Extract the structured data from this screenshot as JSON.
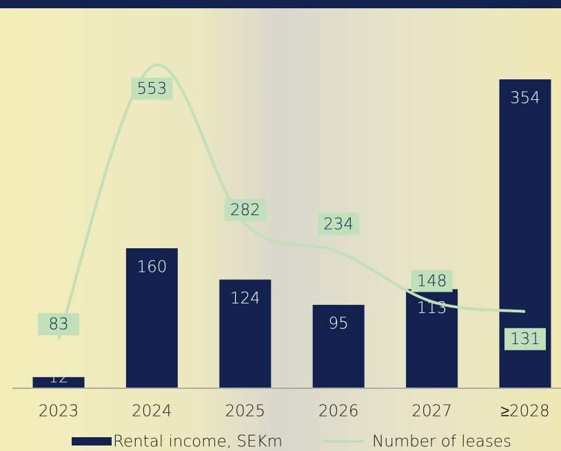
{
  "chart_data": {
    "type": "bar-line",
    "categories": [
      "2023",
      "2024",
      "2025",
      "2026",
      "2027",
      "≥2028"
    ],
    "series": [
      {
        "name": "Rental income, SEKm",
        "color": "#13214f",
        "type": "bar",
        "values": [
          12,
          160,
          124,
          95,
          113,
          354
        ]
      },
      {
        "name": "Number of leases",
        "color": "#bfe0b8",
        "type": "line",
        "axis": "y2",
        "values": [
          83,
          553,
          282,
          234,
          148,
          131
        ]
      }
    ],
    "ylim": [
      0,
      400
    ],
    "y2lim": [
      0,
      600
    ],
    "grid": false,
    "legend": "bottom"
  }
}
